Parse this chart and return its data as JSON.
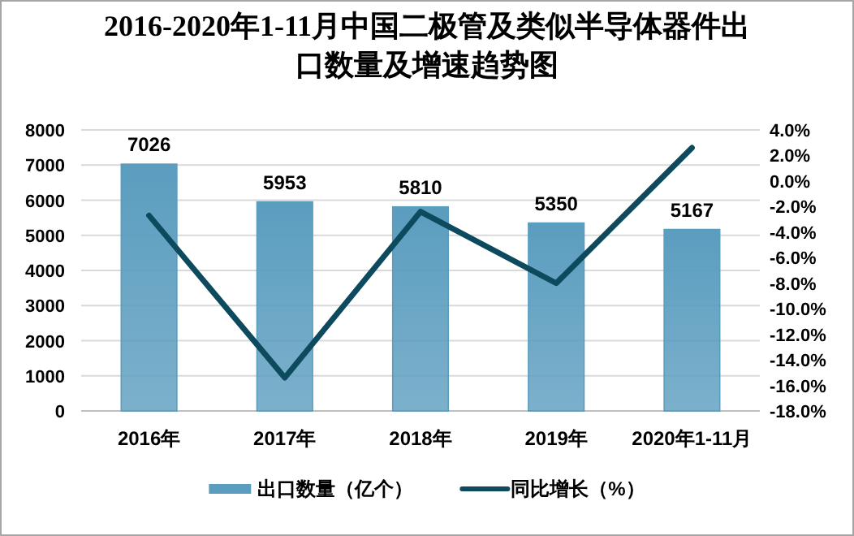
{
  "chart_data": {
    "type": "bar",
    "title": "2016-2020年1-11月中国二极管及类似半导体器件出口数量及增速趋势图",
    "categories": [
      "2016年",
      "2017年",
      "2018年",
      "2019年",
      "2020年1-11月"
    ],
    "series": [
      {
        "name": "出口数量（亿个）",
        "color": "#5b9dbf",
        "values": [
          7026,
          5953,
          5810,
          5350,
          5167
        ],
        "value_labels": [
          "7026",
          "5953",
          "5810",
          "5350",
          "5167"
        ]
      },
      {
        "name": "同比增长（%）",
        "type": "line",
        "axis": "y2",
        "color": "#0d4a5e",
        "values": [
          -2.7,
          -15.4,
          -2.4,
          -8.0,
          2.6
        ]
      }
    ],
    "ylim": [
      0,
      8000
    ],
    "yticks": [
      0,
      1000,
      2000,
      3000,
      4000,
      5000,
      6000,
      7000,
      8000
    ],
    "y2lim": [
      -18,
      4
    ],
    "y2ticks": [
      {
        "value": 4,
        "label": "4.0%"
      },
      {
        "value": 2,
        "label": "2.0%"
      },
      {
        "value": 0,
        "label": "0.0%"
      },
      {
        "value": -2,
        "label": "-2.0%"
      },
      {
        "value": -4,
        "label": "-4.0%"
      },
      {
        "value": -6,
        "label": "-6.0%"
      },
      {
        "value": -8,
        "label": "-8.0%"
      },
      {
        "value": -10,
        "label": "-10.0%"
      },
      {
        "value": -12,
        "label": "-12.0%"
      },
      {
        "value": -14,
        "label": "-14.0%"
      },
      {
        "value": -16,
        "label": "-16.0%"
      },
      {
        "value": -18,
        "label": "-18.0%"
      }
    ],
    "grid": "y",
    "legend": "bottom"
  }
}
